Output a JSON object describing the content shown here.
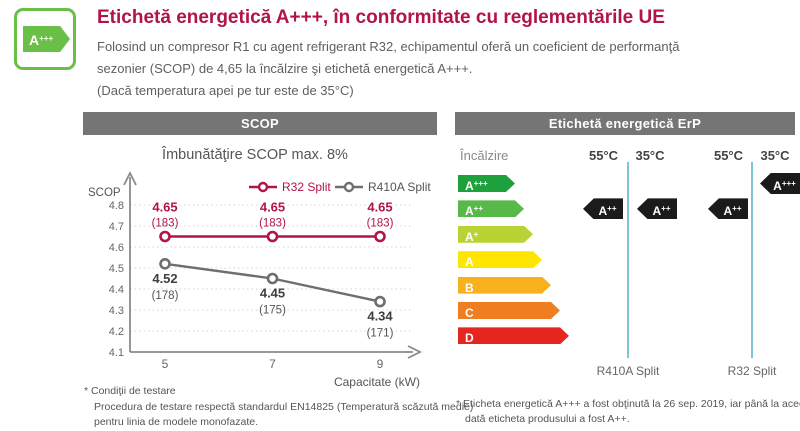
{
  "badge": {
    "rating_base": "A",
    "rating_sup": "+++"
  },
  "header": {
    "title": "Etichetă energetică A+++, în conformitate cu reglementările UE",
    "line1": "Folosind un compresor R1 cu agent refrigerant R32, echipamentul oferă un coeficient de performanţă",
    "line2": "sezonier (SCOP) de 4,65 la încălzire şi etichetă energetică A+++.",
    "line3": "(Dacă temperatura apei pe tur este de 35°C)"
  },
  "scop_panel": {
    "header": "SCOP",
    "footnote_line1": "* Condiţii de testare",
    "footnote_line2": "Procedura de testare respectă standardul EN14825 (Temperatură scăzută medie)",
    "footnote_line3": "pentru linia de modele monofazate."
  },
  "chart_data": {
    "type": "line",
    "title": "Îmbunătăţire SCOP max. 8%",
    "ylabel": "SCOP",
    "xlabel": "Capacitate (kW)",
    "x": [
      5,
      7,
      9
    ],
    "ylim": [
      4.1,
      4.8
    ],
    "yticks": [
      4.8,
      4.7,
      4.6,
      4.5,
      4.4,
      4.3,
      4.2,
      4.1
    ],
    "grid": true,
    "legend_position": "top-right",
    "series": [
      {
        "name": "R32 Split",
        "color": "#b1134b",
        "values": [
          4.65,
          4.65,
          4.65
        ],
        "sub_labels": [
          "(183)",
          "(183)",
          "(183)"
        ],
        "label_side": "above"
      },
      {
        "name": "R410A Split",
        "color": "#6e6e6e",
        "values": [
          4.52,
          4.45,
          4.34
        ],
        "sub_labels": [
          "(178)",
          "(175)",
          "(171)"
        ],
        "label_side": "below"
      }
    ]
  },
  "erp_panel": {
    "header": "Etichetă energetică ErP",
    "heating_label": "Încălzire",
    "temp_labels": [
      "55°C",
      "35°C",
      "55°C",
      "35°C"
    ],
    "line_color": "#7cc6d3",
    "ladder": [
      {
        "base": "A",
        "sup": "+++",
        "color": "#1ea03c"
      },
      {
        "base": "A",
        "sup": "++",
        "color": "#57b947"
      },
      {
        "base": "A",
        "sup": "+",
        "color": "#b8d333"
      },
      {
        "base": "A",
        "sup": "",
        "color": "#ffe600"
      },
      {
        "base": "B",
        "sup": "",
        "color": "#f8b01e"
      },
      {
        "base": "C",
        "sup": "",
        "color": "#ee7e1f"
      },
      {
        "base": "D",
        "sup": "",
        "color": "#e42520"
      }
    ],
    "tags": [
      {
        "base": "A",
        "sup": "++",
        "row": 1,
        "col": 0
      },
      {
        "base": "A",
        "sup": "++",
        "row": 1,
        "col": 1
      },
      {
        "base": "A",
        "sup": "++",
        "row": 1,
        "col": 2
      },
      {
        "base": "A",
        "sup": "+++",
        "row": 0,
        "col": 3
      }
    ],
    "product_labels": [
      "R410A Split",
      "R32 Split"
    ],
    "footnote_line1": "* Eticheta energetică A+++ a fost obţinută la 26 sep. 2019, iar până la aceea",
    "footnote_line2": "dată eticheta produsului a fost A++."
  },
  "colors": {
    "accent_red": "#b1134b",
    "panel_header_gray": "#757575",
    "badge_green": "#6abf46"
  }
}
